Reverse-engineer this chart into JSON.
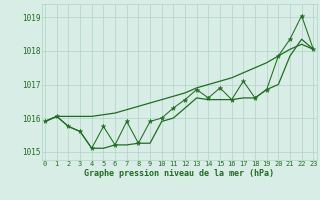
{
  "xlabel": "Graphe pression niveau de la mer (hPa)",
  "hours": [
    0,
    1,
    2,
    3,
    4,
    5,
    6,
    7,
    8,
    9,
    10,
    11,
    12,
    13,
    14,
    15,
    16,
    17,
    18,
    19,
    20,
    21,
    22,
    23
  ],
  "pressure": [
    1015.9,
    1016.05,
    1015.75,
    1015.6,
    1015.1,
    1015.75,
    1015.2,
    1015.9,
    1015.25,
    1015.9,
    1016.0,
    1016.3,
    1016.55,
    1016.85,
    1016.6,
    1016.9,
    1016.55,
    1017.1,
    1016.6,
    1016.85,
    1017.85,
    1018.35,
    1019.05,
    1018.05
  ],
  "upper_line": [
    1015.9,
    1016.05,
    1016.05,
    1016.05,
    1016.05,
    1016.1,
    1016.15,
    1016.25,
    1016.35,
    1016.45,
    1016.55,
    1016.65,
    1016.75,
    1016.9,
    1017.0,
    1017.1,
    1017.2,
    1017.35,
    1017.5,
    1017.65,
    1017.85,
    1018.05,
    1018.2,
    1018.05
  ],
  "lower_line": [
    1015.9,
    1016.05,
    1015.75,
    1015.6,
    1015.1,
    1015.1,
    1015.2,
    1015.2,
    1015.25,
    1015.25,
    1015.9,
    1016.0,
    1016.3,
    1016.6,
    1016.55,
    1016.55,
    1016.55,
    1016.6,
    1016.6,
    1016.85,
    1017.0,
    1017.85,
    1018.35,
    1018.05
  ],
  "ylim": [
    1014.75,
    1019.4
  ],
  "yticks": [
    1015,
    1016,
    1017,
    1018,
    1019
  ],
  "xlim": [
    -0.3,
    23.3
  ],
  "bg_color": "#d7ede5",
  "grid_color": "#b0d4c8",
  "line_color": "#1f6e1f",
  "text_color": "#1f6e1f",
  "fig_bg": "#d7ede5",
  "xlabel_fontsize": 6.0,
  "tick_fontsize": 5.0,
  "linewidth_main": 0.75,
  "linewidth_trend": 0.9,
  "marker_size": 3.5
}
